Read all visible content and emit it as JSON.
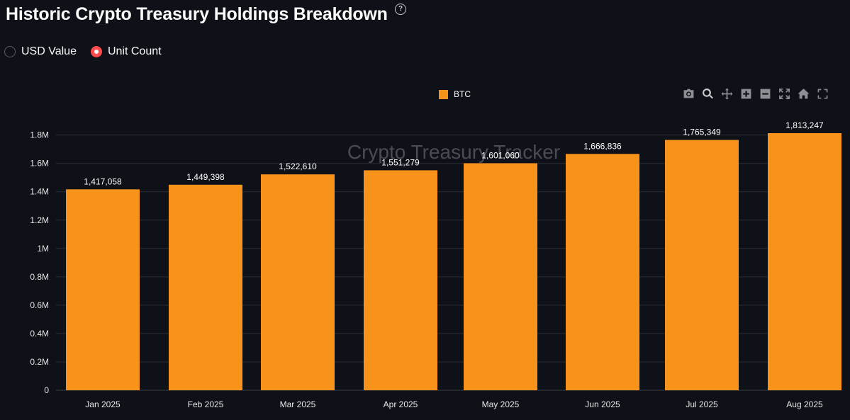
{
  "header": {
    "title": "Historic Crypto Treasury Holdings Breakdown",
    "help_icon": "help-circle-icon"
  },
  "view_toggle": {
    "options": [
      {
        "label": "USD Value",
        "selected": false
      },
      {
        "label": "Unit Count",
        "selected": true
      }
    ],
    "accent": "#ff4b4b"
  },
  "modebar": {
    "buttons": [
      "camera-icon",
      "zoom-icon",
      "pan-icon",
      "zoom-in-icon",
      "zoom-out-icon",
      "autoscale-icon",
      "home-icon",
      "fullscreen-icon"
    ]
  },
  "chart_data": {
    "type": "bar",
    "watermark": "Crypto Treasury Tracker",
    "categories": [
      "Jan 2025",
      "Feb 2025",
      "Mar 2025",
      "Apr 2025",
      "May 2025",
      "Jun 2025",
      "Jul 2025",
      "Aug 2025"
    ],
    "series": [
      {
        "name": "BTC",
        "color": "#f7931a",
        "values": [
          1417058,
          1449398,
          1522610,
          1551279,
          1601060,
          1666836,
          1765349,
          1813247
        ],
        "labels": [
          "1,417,058",
          "1,449,398",
          "1,522,610",
          "1,551,279",
          "1,601,060",
          "1,666,836",
          "1,765,349",
          "1,813,247"
        ]
      }
    ],
    "yticks": [
      0,
      200000,
      400000,
      600000,
      800000,
      1000000,
      1200000,
      1400000,
      1600000,
      1800000
    ],
    "ytick_labels": [
      "0",
      "0.2M",
      "0.4M",
      "0.6M",
      "0.8M",
      "1M",
      "1.2M",
      "1.4M",
      "1.6M",
      "1.8M"
    ],
    "ylim": [
      0,
      1813247
    ],
    "grid": true,
    "legend_position": "top-center"
  }
}
